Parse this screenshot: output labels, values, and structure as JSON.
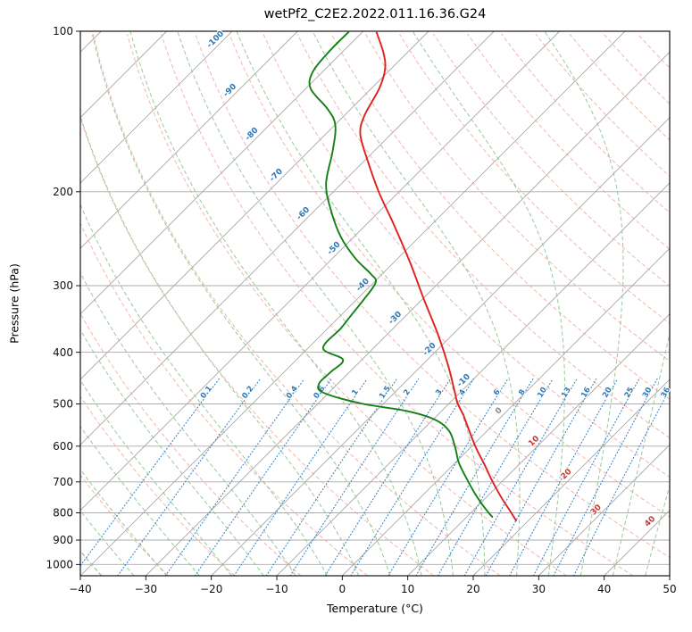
{
  "title": "wetPf2_C2E2.2022.011.16.36.G24",
  "axes": {
    "xlabel": "Temperature (°C)",
    "ylabel": "Pressure (hPa)",
    "x_ticks": [
      -40,
      -30,
      -20,
      -10,
      0,
      10,
      20,
      30,
      40,
      50
    ],
    "pressure_ticks": [
      100,
      200,
      300,
      400,
      500,
      600,
      700,
      800,
      900,
      1000
    ],
    "temp_range": [
      -40,
      50
    ],
    "pressure_range": [
      100,
      1050
    ]
  },
  "chart_data": {
    "type": "line",
    "variant": "skew-t-log-p",
    "title": "wetPf2_C2E2.2022.011.16.36.G24",
    "xlabel": "Temperature (°C)",
    "ylabel": "Pressure (hPa)",
    "xlim": [
      -40,
      50
    ],
    "pressure_lim": [
      100,
      1050
    ],
    "series": [
      {
        "name": "temperature",
        "color": "#e02020",
        "pressure_hPa": [
          100,
          110,
          118,
          128,
          144,
          156,
          175,
          200,
          229,
          272,
          318,
          370,
          424,
          477,
          498,
          525,
          535,
          601,
          648,
          697,
          747,
          792,
          827
        ],
        "temp_C": [
          -78.0,
          -73.5,
          -70.8,
          -68.8,
          -66.9,
          -64.7,
          -59.5,
          -53.1,
          -46.1,
          -37.4,
          -29.8,
          -22.3,
          -15.9,
          -10.7,
          -8.8,
          -6.0,
          -5.1,
          0.6,
          4.6,
          8.4,
          12.2,
          15.6,
          18.1
        ]
      },
      {
        "name": "dewpoint",
        "color": "#128012",
        "pressure_hPa": [
          100,
          109,
          119,
          128,
          140,
          150,
          168,
          193,
          216,
          243,
          267,
          285,
          296,
          319,
          343,
          361,
          393,
          413,
          436,
          458,
          476,
          499,
          515,
          535,
          562,
          600,
          644,
          687,
          731,
          772,
          802,
          814
        ],
        "temp_C": [
          -82.1,
          -82.1,
          -81.5,
          -79.3,
          -73.5,
          -69.9,
          -66.3,
          -62.4,
          -57.7,
          -52.0,
          -46.4,
          -41.8,
          -39.7,
          -38.9,
          -38.4,
          -38.0,
          -37.7,
          -32.9,
          -32.9,
          -32.9,
          -30.9,
          -23.4,
          -15.5,
          -9.7,
          -5.8,
          -2.6,
          0.5,
          3.9,
          7.3,
          10.5,
          12.9,
          13.9
        ]
      }
    ],
    "background": {
      "pressure_gridlines": [
        200,
        300,
        400,
        500,
        600,
        700,
        800,
        900,
        1000
      ],
      "isotherms": {
        "color": "#a6a6a6",
        "min": -160,
        "max": 50,
        "step": 10,
        "labels": [
          {
            "value": -100,
            "y": 46,
            "color": "#2e77b5"
          },
          {
            "value": -90,
            "y": 103,
            "color": "#2e77b5"
          },
          {
            "value": -80,
            "y": 152,
            "color": "#2e77b5"
          },
          {
            "value": -70,
            "y": 198,
            "color": "#2e77b5"
          },
          {
            "value": -60,
            "y": 241,
            "color": "#2e77b5"
          },
          {
            "value": -50,
            "y": 280,
            "color": "#2e77b5"
          },
          {
            "value": -40,
            "y": 321,
            "color": "#2e77b5"
          },
          {
            "value": -30,
            "y": 358,
            "color": "#2e77b5"
          },
          {
            "value": -20,
            "y": 393,
            "color": "#2e77b5"
          },
          {
            "value": -10,
            "y": 428,
            "color": "#2e77b5"
          },
          {
            "value": 0,
            "y": 462,
            "color": "#8a8a8a"
          },
          {
            "value": 10,
            "y": 496,
            "color": "#c53b33"
          },
          {
            "value": 20,
            "y": 533,
            "color": "#c53b33"
          },
          {
            "value": 30,
            "y": 573,
            "color": "#c53b33"
          },
          {
            "value": 40,
            "y": 586,
            "color": "#c53b33"
          }
        ]
      },
      "dry_adiabats": {
        "color": "#efa9a0",
        "theta_min": -40,
        "theta_max": 200,
        "step": 10
      },
      "moist_adiabats": {
        "color": "#8fc28f",
        "thetaw_min": -40,
        "thetaw_max": 50,
        "step": 5
      },
      "mixing_ratio": {
        "color": "#3a87c8",
        "label_color": "#2e77b5",
        "values": [
          0.1,
          0.2,
          0.4,
          0.6,
          1,
          1.5,
          2,
          3,
          4,
          6,
          8,
          10,
          13,
          16,
          20,
          25,
          30,
          36
        ],
        "top_pressure": 430,
        "label_pressure": 478
      }
    }
  }
}
